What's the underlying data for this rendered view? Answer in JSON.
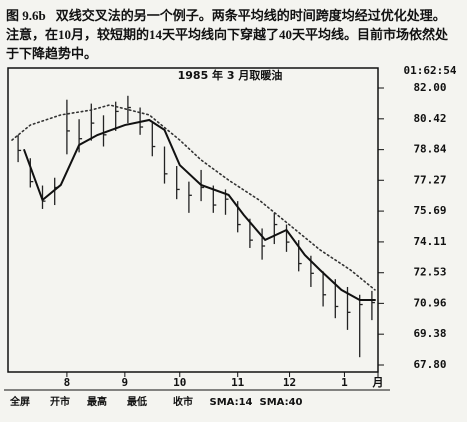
{
  "caption": {
    "label": "图 9.6b",
    "text": "双线交叉法的另一个例子。两条平均线的时间跨度均经过优化处理。注意，在10月，较短期的14天平均线向下穿越了40天平均线。目前市场依然处于下降趋势中。"
  },
  "toolbar": [
    "全屏",
    "开市",
    "最高",
    "最低",
    "收市"
  ],
  "chart_data": {
    "type": "ohlc",
    "title": "1985 年 3 月取暖油",
    "corner_label": "01:62:54",
    "x": [
      1,
      3,
      5,
      7,
      9,
      11,
      13,
      15,
      17,
      19,
      21,
      23,
      25,
      27,
      29,
      31,
      33,
      35,
      37,
      39,
      41,
      43,
      45,
      47,
      49,
      51,
      53,
      55,
      57,
      59
    ],
    "high": [
      79.6,
      78.4,
      77.0,
      77.4,
      81.4,
      80.4,
      81.2,
      80.6,
      81.3,
      81.6,
      81.0,
      80.2,
      79.0,
      78.0,
      77.2,
      77.8,
      77.0,
      76.8,
      76.2,
      75.3,
      74.8,
      75.6,
      75.0,
      74.2,
      73.4,
      72.6,
      72.2,
      71.8,
      71.4,
      71.6
    ],
    "low": [
      78.2,
      76.9,
      75.8,
      76.0,
      78.6,
      78.7,
      79.3,
      79.0,
      79.8,
      80.2,
      79.6,
      78.5,
      77.1,
      76.3,
      75.6,
      76.2,
      75.6,
      75.5,
      74.6,
      73.8,
      73.2,
      74.0,
      73.6,
      72.6,
      71.8,
      70.8,
      70.2,
      69.6,
      68.2,
      70.1
    ],
    "close": [
      78.8,
      77.2,
      76.2,
      76.9,
      79.8,
      79.4,
      80.2,
      79.6,
      80.8,
      81.0,
      80.0,
      79.0,
      77.6,
      76.8,
      76.5,
      76.9,
      76.0,
      76.3,
      75.0,
      74.2,
      73.9,
      75.0,
      74.1,
      73.0,
      72.5,
      71.4,
      70.8,
      70.5,
      70.9,
      71.0
    ],
    "color": "#222222",
    "series": [
      {
        "name": "SMA:14",
        "color": "#111111",
        "x": [
          2,
          5,
          8,
          11,
          14,
          18.5,
          22.5,
          25,
          27.5,
          31,
          35.5,
          38,
          41.5,
          45,
          48,
          50.5,
          54,
          57,
          59.5
        ],
        "values": [
          78.82,
          76.26,
          77.03,
          79.08,
          79.59,
          80.1,
          80.36,
          79.85,
          78.05,
          77.03,
          76.52,
          75.49,
          74.21,
          74.72,
          73.44,
          72.67,
          71.65,
          71.13,
          71.13
        ]
      },
      {
        "name": "SMA:40",
        "color": "#333333",
        "dotted": true,
        "x": [
          0,
          3,
          8,
          13,
          16,
          22.5,
          27.5,
          31,
          35.5,
          40.5,
          45.5,
          50.5,
          55.5,
          59.5
        ],
        "values": [
          79.33,
          80.1,
          80.62,
          80.87,
          81.13,
          80.62,
          79.33,
          78.31,
          77.28,
          76.26,
          74.98,
          73.7,
          72.67,
          71.65
        ]
      }
    ],
    "xlim": [
      0,
      60
    ],
    "xticks": [
      {
        "value": 9,
        "label": "8"
      },
      {
        "value": 18.5,
        "label": "9"
      },
      {
        "value": 27.5,
        "label": "10"
      },
      {
        "value": 37,
        "label": "11"
      },
      {
        "value": 45.5,
        "label": "12"
      },
      {
        "value": 54.5,
        "label": "1"
      },
      {
        "value": 60,
        "label": "月"
      }
    ],
    "ylim": [
      67.8,
      82.0
    ],
    "yticks": [
      {
        "value": 82.0,
        "label": "82.00"
      },
      {
        "value": 80.42,
        "label": "80.42"
      },
      {
        "value": 78.84,
        "label": "78.84"
      },
      {
        "value": 77.27,
        "label": "77.27"
      },
      {
        "value": 75.69,
        "label": "75.69"
      },
      {
        "value": 74.11,
        "label": "74.11"
      },
      {
        "value": 72.53,
        "label": "72.53"
      },
      {
        "value": 70.96,
        "label": "70.96"
      },
      {
        "value": 69.38,
        "label": "69.38"
      },
      {
        "value": 67.8,
        "label": "67.80"
      }
    ]
  }
}
